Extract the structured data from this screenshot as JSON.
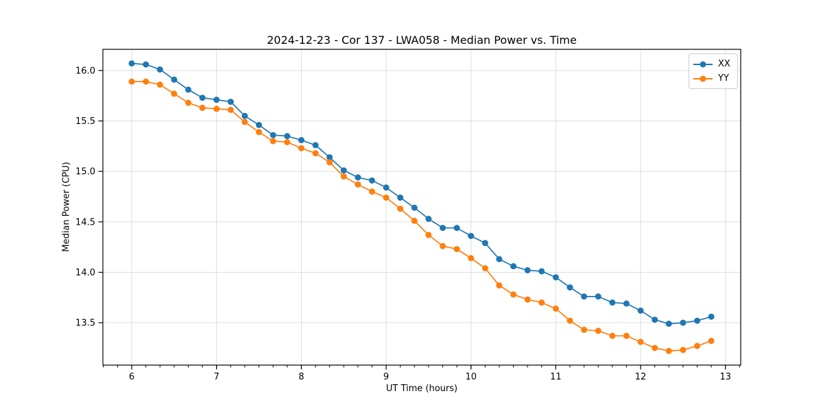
{
  "chart_data": {
    "type": "line",
    "title": "2024-12-23 - Cor 137 - LWA058 - Median Power vs. Time",
    "xlabel": "UT Time (hours)",
    "ylabel": "Median Power (CPU)",
    "x": [
      6.0,
      6.167,
      6.333,
      6.5,
      6.667,
      6.833,
      7.0,
      7.167,
      7.333,
      7.5,
      7.667,
      7.833,
      8.0,
      8.167,
      8.333,
      8.5,
      8.667,
      8.833,
      9.0,
      9.167,
      9.333,
      9.5,
      9.667,
      9.833,
      10.0,
      10.167,
      10.333,
      10.5,
      10.667,
      10.833,
      11.0,
      11.167,
      11.333,
      11.5,
      11.667,
      11.833,
      12.0,
      12.167,
      12.333,
      12.5,
      12.667,
      12.833
    ],
    "series": [
      {
        "name": "XX",
        "color": "#1f77b4",
        "values": [
          16.07,
          16.06,
          16.01,
          15.91,
          15.81,
          15.73,
          15.71,
          15.69,
          15.55,
          15.46,
          15.36,
          15.35,
          15.31,
          15.26,
          15.14,
          15.01,
          14.94,
          14.91,
          14.84,
          14.74,
          14.64,
          14.53,
          14.44,
          14.44,
          14.36,
          14.29,
          14.13,
          14.06,
          14.02,
          14.01,
          13.95,
          13.85,
          13.76,
          13.76,
          13.7,
          13.69,
          13.62,
          13.53,
          13.49,
          13.5,
          13.52,
          13.56
        ]
      },
      {
        "name": "YY",
        "color": "#ff7f0e",
        "values": [
          15.89,
          15.89,
          15.86,
          15.77,
          15.68,
          15.63,
          15.62,
          15.61,
          15.49,
          15.39,
          15.3,
          15.29,
          15.23,
          15.18,
          15.09,
          14.95,
          14.87,
          14.8,
          14.74,
          14.63,
          14.51,
          14.37,
          14.26,
          14.23,
          14.14,
          14.04,
          13.87,
          13.78,
          13.73,
          13.7,
          13.64,
          13.52,
          13.43,
          13.42,
          13.37,
          13.37,
          13.31,
          13.25,
          13.22,
          13.23,
          13.27,
          13.32
        ]
      }
    ],
    "xlim": [
      5.66,
      13.18
    ],
    "ylim": [
      13.08,
      16.21
    ],
    "x_ticks": [
      6,
      7,
      8,
      9,
      10,
      11,
      12,
      13
    ],
    "y_ticks": [
      13.5,
      14.0,
      14.5,
      15.0,
      15.5,
      16.0
    ],
    "x_minor_step": 0.1666667,
    "grid": true,
    "legend_position": "upper right",
    "marker": "circle"
  },
  "legend": {
    "items": [
      {
        "label": "XX",
        "color": "#1f77b4"
      },
      {
        "label": "YY",
        "color": "#ff7f0e"
      }
    ]
  },
  "style": {
    "grid_color": "#dddddd",
    "spine_color": "#000000",
    "tick_color": "#000000",
    "marker_radius": 4.5,
    "line_width": 1.7
  }
}
